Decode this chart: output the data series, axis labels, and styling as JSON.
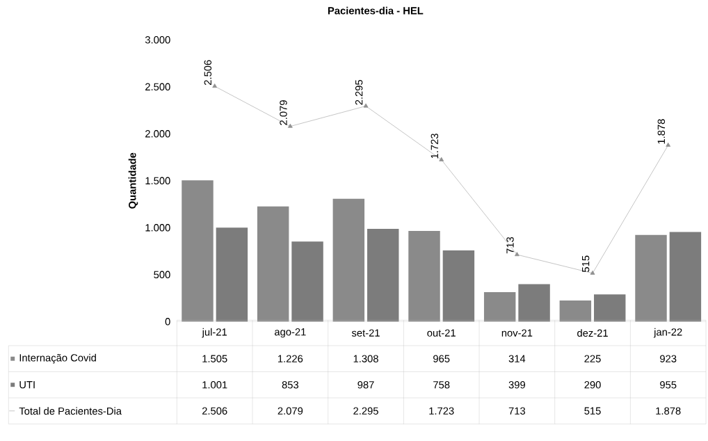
{
  "chart_data": {
    "type": "bar",
    "title": "Pacientes-dia - HEL",
    "ylabel": "Quantidade",
    "categories": [
      "jul-21",
      "ago-21",
      "set-21",
      "out-21",
      "nov-21",
      "dez-21",
      "jan-22"
    ],
    "series": [
      {
        "name": "Internação Covid",
        "color": "#8a8a8a",
        "values": [
          1505,
          1226,
          1308,
          965,
          314,
          225,
          923
        ],
        "value_labels": [
          "1.505",
          "1.226",
          "1.308",
          "965",
          "314",
          "225",
          "923"
        ]
      },
      {
        "name": "UTI",
        "color": "#7c7c7c",
        "values": [
          1001,
          853,
          987,
          758,
          399,
          290,
          955
        ],
        "value_labels": [
          "1.001",
          "853",
          "987",
          "758",
          "399",
          "290",
          "955"
        ]
      },
      {
        "name": "Total de Pacientes-Dia",
        "type": "line",
        "color": "#b5b5b5",
        "marker": "triangle",
        "values": [
          2506,
          2079,
          2295,
          1723,
          713,
          515,
          1878
        ],
        "value_labels": [
          "2.506",
          "2.079",
          "2.295",
          "1.723",
          "713",
          "515",
          "1.878"
        ]
      }
    ],
    "ylim": [
      0,
      3000
    ],
    "yticks": [
      {
        "value": 0,
        "label": "0"
      },
      {
        "value": 500,
        "label": "500"
      },
      {
        "value": 1000,
        "label": "1.000"
      },
      {
        "value": 1500,
        "label": "1.500"
      },
      {
        "value": 2000,
        "label": "2.000"
      },
      {
        "value": 2500,
        "label": "2.500"
      },
      {
        "value": 3000,
        "label": "3.000"
      }
    ],
    "legend": "bottom"
  }
}
